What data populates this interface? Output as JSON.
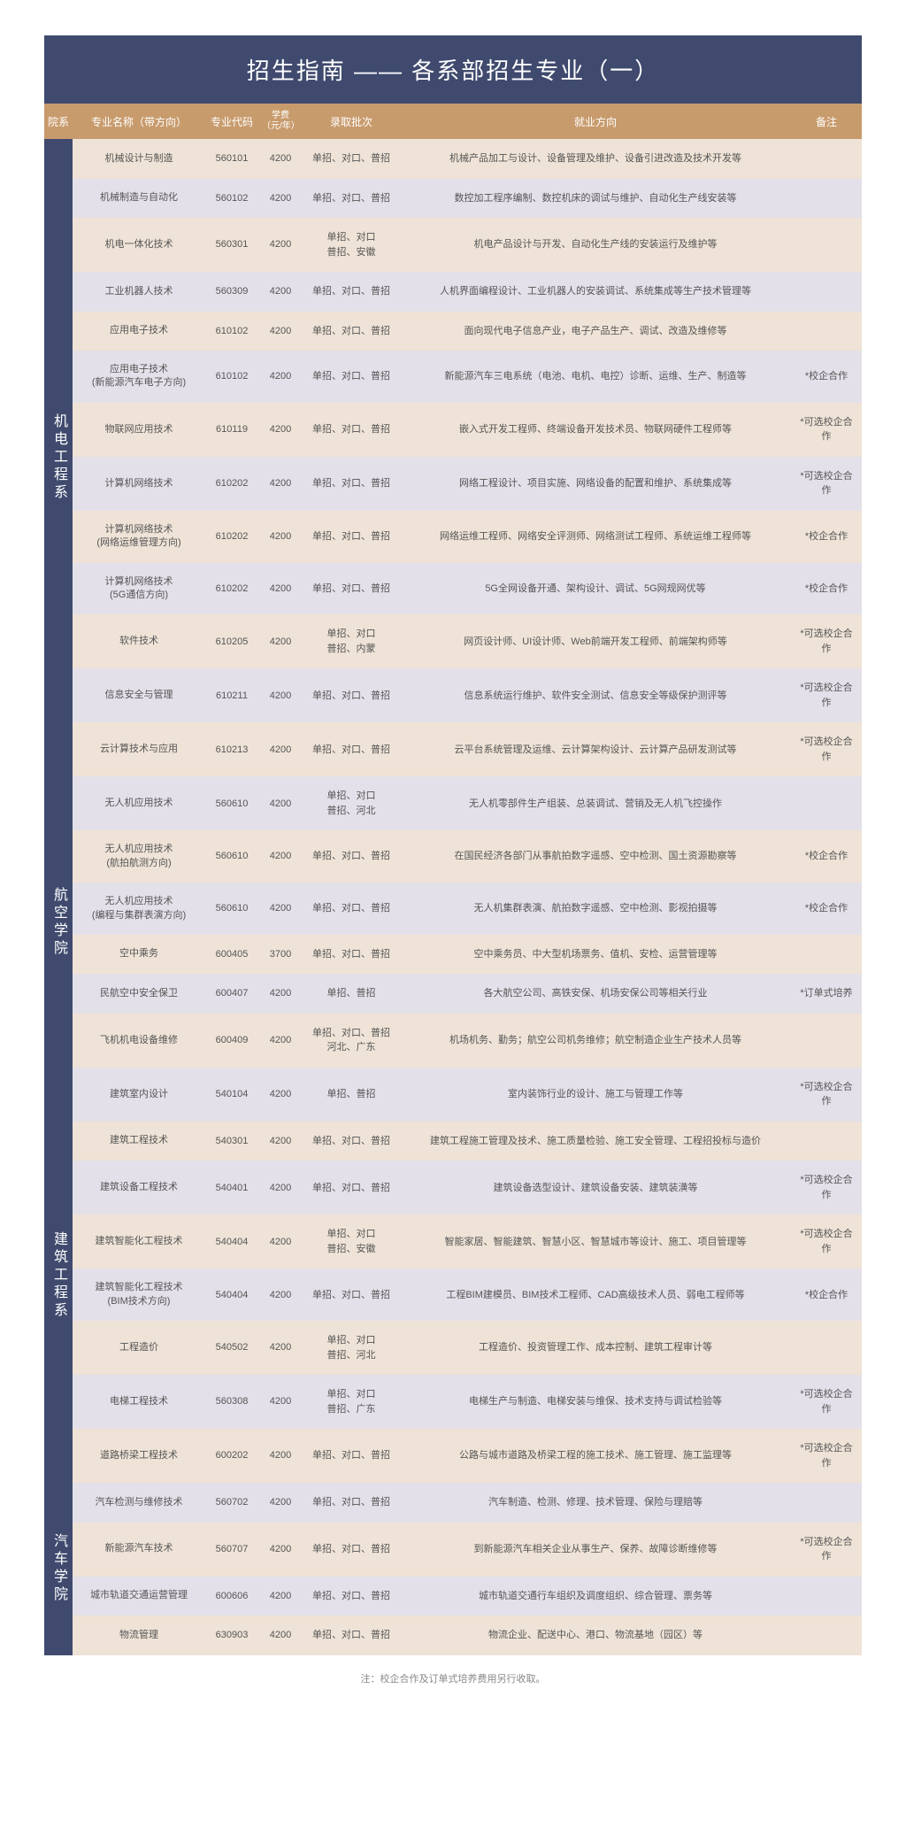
{
  "title": "招生指南 —— 各系部招生专业（一）",
  "headers": {
    "dept": "院系",
    "major": "专业名称（带方向）",
    "code": "专业代码",
    "fee": "学费",
    "fee_sub": "（元/年）",
    "batch": "录取批次",
    "direction": "就业方向",
    "remark": "备注"
  },
  "footnote": "注：校企合作及订单式培养费用另行收取。",
  "departments": [
    {
      "name": "机电工程系",
      "rows": [
        {
          "major": "机械设计与制造",
          "code": "560101",
          "fee": "4200",
          "batch": "单招、对口、普招",
          "direction": "机械产品加工与设计、设备管理及维护、设备引进改造及技术开发等",
          "remark": ""
        },
        {
          "major": "机械制造与自动化",
          "code": "560102",
          "fee": "4200",
          "batch": "单招、对口、普招",
          "direction": "数控加工程序编制、数控机床的调试与维护、自动化生产线安装等",
          "remark": ""
        },
        {
          "major": "机电一体化技术",
          "code": "560301",
          "fee": "4200",
          "batch": "单招、对口\n普招、安徽",
          "direction": "机电产品设计与开发、自动化生产线的安装运行及维护等",
          "remark": ""
        },
        {
          "major": "工业机器人技术",
          "code": "560309",
          "fee": "4200",
          "batch": "单招、对口、普招",
          "direction": "人机界面编程设计、工业机器人的安装调试、系统集成等生产技术管理等",
          "remark": ""
        },
        {
          "major": "应用电子技术",
          "code": "610102",
          "fee": "4200",
          "batch": "单招、对口、普招",
          "direction": "面向现代电子信息产业，电子产品生产、调试、改造及维修等",
          "remark": ""
        },
        {
          "major": "应用电子技术\n(新能源汽车电子方向)",
          "code": "610102",
          "fee": "4200",
          "batch": "单招、对口、普招",
          "direction": "新能源汽车三电系统（电池、电机、电控）诊断、运维、生产、制造等",
          "remark": "*校企合作"
        },
        {
          "major": "物联网应用技术",
          "code": "610119",
          "fee": "4200",
          "batch": "单招、对口、普招",
          "direction": "嵌入式开发工程师、终端设备开发技术员、物联网硬件工程师等",
          "remark": "*可选校企合作"
        },
        {
          "major": "计算机网络技术",
          "code": "610202",
          "fee": "4200",
          "batch": "单招、对口、普招",
          "direction": "网络工程设计、项目实施、网络设备的配置和维护、系统集成等",
          "remark": "*可选校企合作"
        },
        {
          "major": "计算机网络技术\n(网络运维管理方向)",
          "code": "610202",
          "fee": "4200",
          "batch": "单招、对口、普招",
          "direction": "网络运维工程师、网络安全评测师、网络测试工程师、系统运维工程师等",
          "remark": "*校企合作"
        },
        {
          "major": "计算机网络技术\n(5G通信方向)",
          "code": "610202",
          "fee": "4200",
          "batch": "单招、对口、普招",
          "direction": "5G全网设备开通、架构设计、调试、5G网规网优等",
          "remark": "*校企合作"
        },
        {
          "major": "软件技术",
          "code": "610205",
          "fee": "4200",
          "batch": "单招、对口\n普招、内蒙",
          "direction": "网页设计师、UI设计师、Web前端开发工程师、前端架构师等",
          "remark": "*可选校企合作"
        },
        {
          "major": "信息安全与管理",
          "code": "610211",
          "fee": "4200",
          "batch": "单招、对口、普招",
          "direction": "信息系统运行维护、软件安全测试、信息安全等级保护测评等",
          "remark": "*可选校企合作"
        },
        {
          "major": "云计算技术与应用",
          "code": "610213",
          "fee": "4200",
          "batch": "单招、对口、普招",
          "direction": "云平台系统管理及运维、云计算架构设计、云计算产品研发测试等",
          "remark": "*可选校企合作"
        }
      ]
    },
    {
      "name": "航空学院",
      "rows": [
        {
          "major": "无人机应用技术",
          "code": "560610",
          "fee": "4200",
          "batch": "单招、对口\n普招、河北",
          "direction": "无人机零部件生产组装、总装调试、营销及无人机飞控操作",
          "remark": ""
        },
        {
          "major": "无人机应用技术\n(航拍航测方向)",
          "code": "560610",
          "fee": "4200",
          "batch": "单招、对口、普招",
          "direction": "在国民经济各部门从事航拍数字遥感、空中检测、国土资源勘察等",
          "remark": "*校企合作"
        },
        {
          "major": "无人机应用技术\n(编程与集群表演方向)",
          "code": "560610",
          "fee": "4200",
          "batch": "单招、对口、普招",
          "direction": "无人机集群表演、航拍数字遥感、空中检测、影视拍摄等",
          "remark": "*校企合作"
        },
        {
          "major": "空中乘务",
          "code": "600405",
          "fee": "3700",
          "batch": "单招、对口、普招",
          "direction": "空中乘务员、中大型机场票务、值机、安检、运营管理等",
          "remark": ""
        },
        {
          "major": "民航空中安全保卫",
          "code": "600407",
          "fee": "4200",
          "batch": "单招、普招",
          "direction": "各大航空公司、高铁安保、机场安保公司等相关行业",
          "remark": "*订单式培养"
        },
        {
          "major": "飞机机电设备维修",
          "code": "600409",
          "fee": "4200",
          "batch": "单招、对口、普招\n河北、广东",
          "direction": "机场机务、勤务；航空公司机务维修；航空制造企业生产技术人员等",
          "remark": ""
        }
      ]
    },
    {
      "name": "建筑工程系",
      "rows": [
        {
          "major": "建筑室内设计",
          "code": "540104",
          "fee": "4200",
          "batch": "单招、普招",
          "direction": "室内装饰行业的设计、施工与管理工作等",
          "remark": "*可选校企合作"
        },
        {
          "major": "建筑工程技术",
          "code": "540301",
          "fee": "4200",
          "batch": "单招、对口、普招",
          "direction": "建筑工程施工管理及技术、施工质量检验、施工安全管理、工程招投标与造价",
          "remark": ""
        },
        {
          "major": "建筑设备工程技术",
          "code": "540401",
          "fee": "4200",
          "batch": "单招、对口、普招",
          "direction": "建筑设备选型设计、建筑设备安装、建筑装潢等",
          "remark": "*可选校企合作"
        },
        {
          "major": "建筑智能化工程技术",
          "code": "540404",
          "fee": "4200",
          "batch": "单招、对口\n普招、安徽",
          "direction": "智能家居、智能建筑、智慧小区、智慧城市等设计、施工、项目管理等",
          "remark": "*可选校企合作"
        },
        {
          "major": "建筑智能化工程技术\n(BIM技术方向)",
          "code": "540404",
          "fee": "4200",
          "batch": "单招、对口、普招",
          "direction": "工程BIM建模员、BIM技术工程师、CAD高级技术人员、弱电工程师等",
          "remark": "*校企合作"
        },
        {
          "major": "工程造价",
          "code": "540502",
          "fee": "4200",
          "batch": "单招、对口\n普招、河北",
          "direction": "工程造价、投资管理工作、成本控制、建筑工程审计等",
          "remark": ""
        },
        {
          "major": "电梯工程技术",
          "code": "560308",
          "fee": "4200",
          "batch": "单招、对口\n普招、广东",
          "direction": "电梯生产与制造、电梯安装与维保、技术支持与调试检验等",
          "remark": "*可选校企合作"
        },
        {
          "major": "道路桥梁工程技术",
          "code": "600202",
          "fee": "4200",
          "batch": "单招、对口、普招",
          "direction": "公路与城市道路及桥梁工程的施工技术、施工管理、施工监理等",
          "remark": "*可选校企合作"
        }
      ]
    },
    {
      "name": "汽车学院",
      "rows": [
        {
          "major": "汽车检测与维修技术",
          "code": "560702",
          "fee": "4200",
          "batch": "单招、对口、普招",
          "direction": "汽车制造、检测、修理、技术管理、保险与理赔等",
          "remark": ""
        },
        {
          "major": "新能源汽车技术",
          "code": "560707",
          "fee": "4200",
          "batch": "单招、对口、普招",
          "direction": "到新能源汽车相关企业从事生产、保养、故障诊断维修等",
          "remark": "*可选校企合作"
        },
        {
          "major": "城市轨道交通运营管理",
          "code": "600606",
          "fee": "4200",
          "batch": "单招、对口、普招",
          "direction": "城市轨道交通行车组织及调度组织、综合管理、票务等",
          "remark": ""
        },
        {
          "major": "物流管理",
          "code": "630903",
          "fee": "4200",
          "batch": "单招、对口、普招",
          "direction": "物流企业、配送中心、港口、物流基地（园区）等",
          "remark": ""
        }
      ]
    }
  ]
}
